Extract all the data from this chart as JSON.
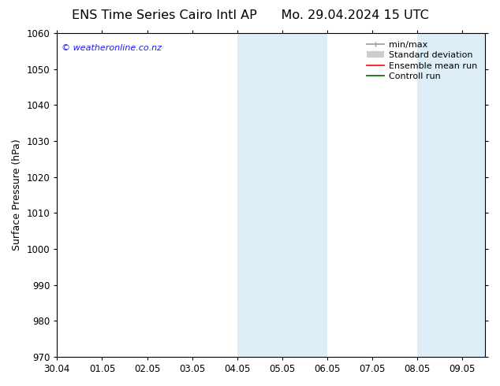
{
  "title_left": "ENS Time Series Cairo Intl AP",
  "title_right": "Mo. 29.04.2024 15 UTC",
  "ylabel": "Surface Pressure (hPa)",
  "ylim": [
    970,
    1060
  ],
  "yticks": [
    970,
    980,
    990,
    1000,
    1010,
    1020,
    1030,
    1040,
    1050,
    1060
  ],
  "xtick_labels": [
    "30.04",
    "01.05",
    "02.05",
    "03.05",
    "04.05",
    "05.05",
    "06.05",
    "07.05",
    "08.05",
    "09.05"
  ],
  "shade_color": "#ddeef8",
  "watermark": "© weatheronline.co.nz",
  "watermark_color": "#1a1aff",
  "legend_items": [
    {
      "label": "min/max",
      "color": "#999999",
      "lw": 1.2,
      "style": "solid"
    },
    {
      "label": "Standard deviation",
      "color": "#cccccc",
      "lw": 5,
      "style": "solid"
    },
    {
      "label": "Ensemble mean run",
      "color": "#ff0000",
      "lw": 1.2,
      "style": "solid"
    },
    {
      "label": "Controll run",
      "color": "#006600",
      "lw": 1.2,
      "style": "solid"
    }
  ],
  "background_color": "#ffffff",
  "font_color": "#000000",
  "title_fontsize": 11.5,
  "tick_fontsize": 8.5,
  "ylabel_fontsize": 9,
  "watermark_fontsize": 8,
  "legend_fontsize": 8
}
